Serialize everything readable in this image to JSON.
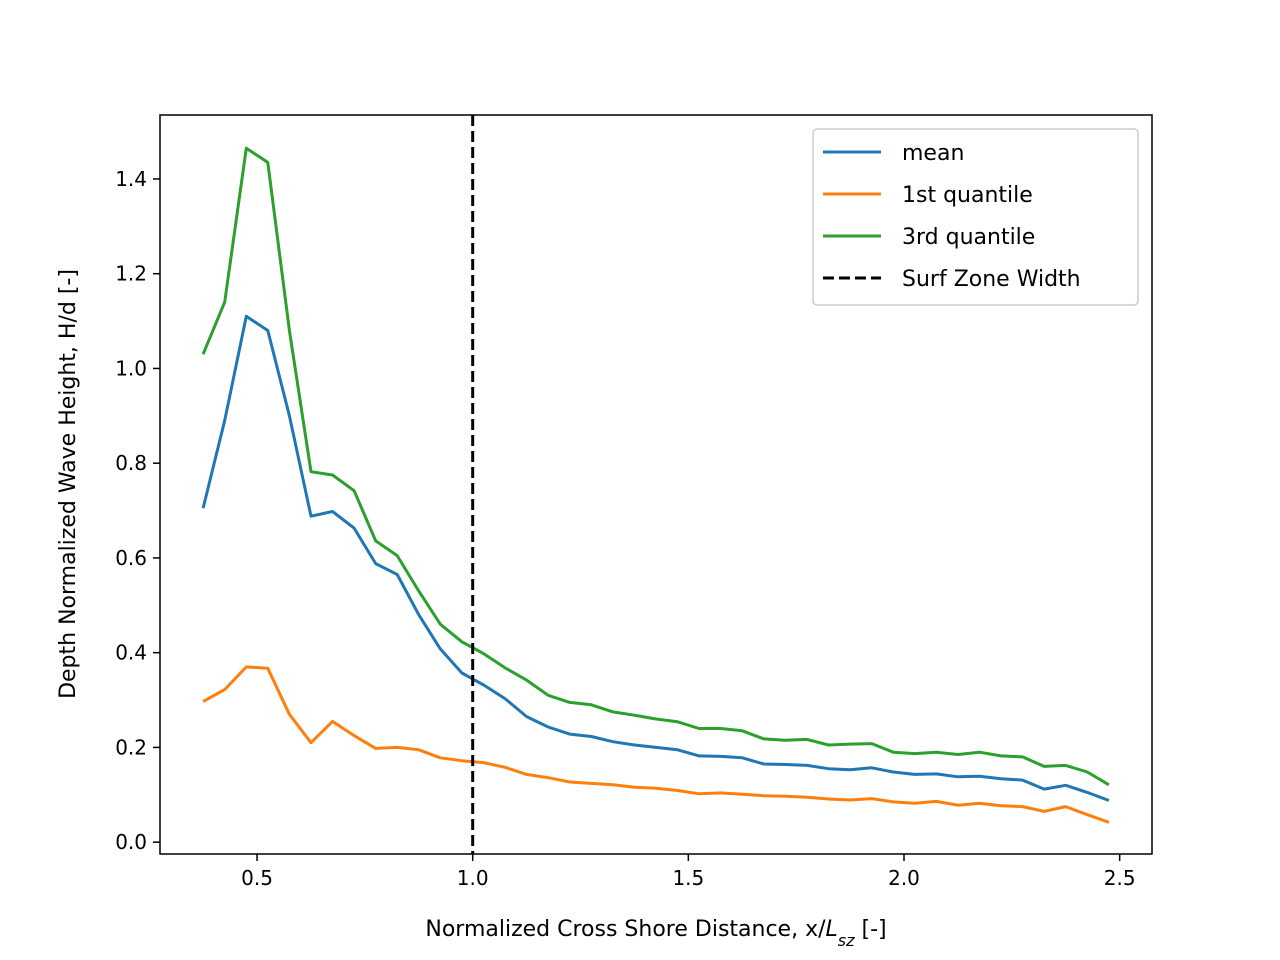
{
  "chart_data": {
    "type": "line",
    "title": "",
    "xlabel_prefix": "Normalized Cross Shore Distance, x/",
    "xlabel_var": "L",
    "xlabel_sub": "sz",
    "xlabel_suffix": " [-]",
    "ylabel": "Depth Normalized Wave Height, H/d [-]",
    "xlim": [
      0.275,
      2.575
    ],
    "ylim": [
      -0.025,
      1.535
    ],
    "xticks": [
      0.5,
      1.0,
      1.5,
      2.0,
      2.5
    ],
    "xtick_labels": [
      "0.5",
      "1.0",
      "1.5",
      "2.0",
      "2.5"
    ],
    "yticks": [
      0.0,
      0.2,
      0.4,
      0.6,
      0.8,
      1.0,
      1.2,
      1.4
    ],
    "ytick_labels": [
      "0.0",
      "0.2",
      "0.4",
      "0.6",
      "0.8",
      "1.0",
      "1.2",
      "1.4"
    ],
    "grid": false,
    "legend_position": "top-right",
    "x": [
      0.375,
      0.425,
      0.475,
      0.525,
      0.575,
      0.625,
      0.675,
      0.725,
      0.775,
      0.825,
      0.875,
      0.925,
      0.975,
      1.025,
      1.075,
      1.125,
      1.175,
      1.225,
      1.275,
      1.325,
      1.375,
      1.425,
      1.475,
      1.525,
      1.575,
      1.625,
      1.675,
      1.725,
      1.775,
      1.825,
      1.875,
      1.925,
      1.975,
      2.025,
      2.075,
      2.125,
      2.175,
      2.225,
      2.275,
      2.325,
      2.375,
      2.425,
      2.475
    ],
    "series": [
      {
        "name": "mean",
        "color": "#1f77b4",
        "style": "solid",
        "values": [
          0.705,
          0.89,
          1.11,
          1.08,
          0.9,
          0.688,
          0.698,
          0.663,
          0.588,
          0.565,
          0.48,
          0.408,
          0.357,
          0.332,
          0.303,
          0.265,
          0.243,
          0.228,
          0.223,
          0.212,
          0.205,
          0.2,
          0.195,
          0.182,
          0.181,
          0.178,
          0.165,
          0.164,
          0.162,
          0.155,
          0.153,
          0.157,
          0.148,
          0.143,
          0.144,
          0.138,
          0.139,
          0.134,
          0.131,
          0.112,
          0.12,
          0.105,
          0.088
        ]
      },
      {
        "name": "1st quantile",
        "color": "#ff7f0e",
        "style": "solid",
        "values": [
          0.297,
          0.322,
          0.37,
          0.367,
          0.27,
          0.21,
          0.255,
          0.225,
          0.198,
          0.2,
          0.195,
          0.178,
          0.172,
          0.168,
          0.158,
          0.143,
          0.136,
          0.127,
          0.124,
          0.121,
          0.116,
          0.114,
          0.109,
          0.102,
          0.104,
          0.101,
          0.098,
          0.097,
          0.095,
          0.091,
          0.089,
          0.092,
          0.085,
          0.082,
          0.086,
          0.078,
          0.082,
          0.077,
          0.075,
          0.065,
          0.075,
          0.058,
          0.042
        ]
      },
      {
        "name": "3rd quantile",
        "color": "#2ca02c",
        "style": "solid",
        "values": [
          1.03,
          1.14,
          1.465,
          1.435,
          1.08,
          0.782,
          0.775,
          0.742,
          0.636,
          0.605,
          0.53,
          0.46,
          0.423,
          0.398,
          0.368,
          0.342,
          0.31,
          0.295,
          0.29,
          0.275,
          0.268,
          0.26,
          0.254,
          0.24,
          0.24,
          0.235,
          0.218,
          0.215,
          0.217,
          0.205,
          0.207,
          0.208,
          0.19,
          0.187,
          0.19,
          0.185,
          0.19,
          0.182,
          0.18,
          0.16,
          0.162,
          0.148,
          0.121
        ]
      }
    ],
    "vline": {
      "name": "Surf Zone Width",
      "x": 1.0,
      "color": "#000000",
      "style": "dashed"
    }
  }
}
